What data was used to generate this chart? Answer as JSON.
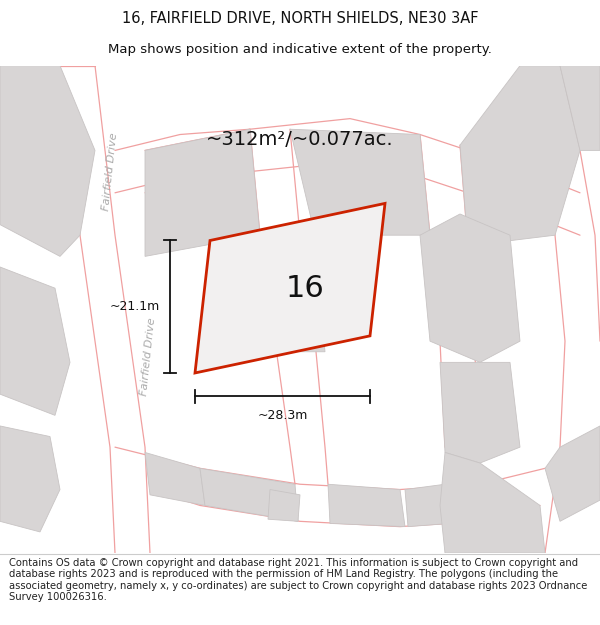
{
  "title_line1": "16, FAIRFIELD DRIVE, NORTH SHIELDS, NE30 3AF",
  "title_line2": "Map shows position and indicative extent of the property.",
  "area_text": "~312m²/~0.077ac.",
  "property_number": "16",
  "dim_width": "~28.3m",
  "dim_height": "~21.1m",
  "footer_text": "Contains OS data © Crown copyright and database right 2021. This information is subject to Crown copyright and database rights 2023 and is reproduced with the permission of HM Land Registry. The polygons (including the associated geometry, namely x, y co-ordinates) are subject to Crown copyright and database rights 2023 Ordnance Survey 100026316.",
  "map_bg": "#f2f0f0",
  "block_fill": "#d8d5d5",
  "block_edge": "#c8c4c4",
  "street_pink": "#f0a0a0",
  "property_edge": "#cc2200",
  "property_fill": "#f2f0f0",
  "text_dark": "#111111",
  "road_label_color": "#aaaaaa",
  "title_fontsize": 10.5,
  "subtitle_fontsize": 9.5,
  "footer_fontsize": 7.2,
  "area_fontsize": 14,
  "number_fontsize": 22,
  "dim_fontsize": 9
}
